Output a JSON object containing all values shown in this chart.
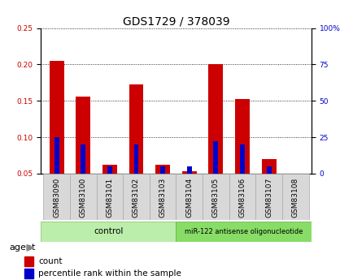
{
  "title": "GDS1729 / 378039",
  "samples": [
    "GSM83090",
    "GSM83100",
    "GSM83101",
    "GSM83102",
    "GSM83103",
    "GSM83104",
    "GSM83105",
    "GSM83106",
    "GSM83107",
    "GSM83108"
  ],
  "red_values": [
    0.205,
    0.156,
    0.062,
    0.172,
    0.062,
    0.053,
    0.2,
    0.152,
    0.07,
    0.05
  ],
  "blue_pct": [
    25,
    20,
    5,
    20,
    5,
    5,
    22,
    20,
    5,
    0
  ],
  "ylim_left": [
    0.05,
    0.25
  ],
  "ylim_right": [
    0,
    100
  ],
  "yticks_left": [
    0.05,
    0.1,
    0.15,
    0.2,
    0.25
  ],
  "ytick_labels_left": [
    "0.05",
    "0.10",
    "0.15",
    "0.20",
    "0.25"
  ],
  "yticks_right": [
    0,
    25,
    50,
    75,
    100
  ],
  "ytick_labels_right": [
    "0",
    "25",
    "50",
    "75",
    "100%"
  ],
  "red_color": "#cc0000",
  "blue_color": "#0000cc",
  "red_bar_width": 0.55,
  "blue_bar_width": 0.18,
  "groups": [
    {
      "label": "control",
      "n": 5,
      "color": "#bbeeaa"
    },
    {
      "label": "miR-122 antisense oligonucleotide",
      "n": 5,
      "color": "#88dd66"
    }
  ],
  "agent_label": "agent",
  "legend_count": "count",
  "legend_pct": "percentile rank within the sample",
  "plot_bg": "#ffffff",
  "title_fontsize": 10,
  "tick_fontsize": 6.5,
  "xtick_bg": "#d8d8d8"
}
